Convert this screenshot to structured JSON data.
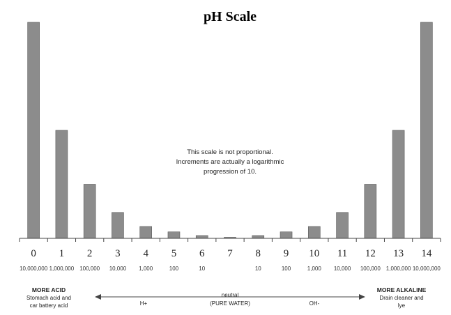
{
  "chart_data": {
    "type": "bar",
    "title": "pH Scale",
    "xlabel": "",
    "ylabel": "",
    "categories": [
      "0",
      "1",
      "2",
      "3",
      "4",
      "5",
      "6",
      "7",
      "8",
      "9",
      "10",
      "11",
      "12",
      "13",
      "14"
    ],
    "values": [
      10000000,
      5000000,
      2500000,
      1200000,
      550000,
      300000,
      130000,
      50000,
      130000,
      300000,
      550000,
      1200000,
      2500000,
      5000000,
      10000000
    ],
    "ylim": [
      0,
      10000000
    ],
    "grid": false,
    "bar_color": "#8c8c8c",
    "sub_labels": [
      "10,000,000",
      "1,000,000",
      "100,000",
      "10,000",
      "1,000",
      "100",
      "10",
      "",
      "10",
      "100",
      "1,000",
      "10,000",
      "100,000",
      "1,000,000",
      "10,000,000"
    ],
    "note_lines": [
      "This scale is not proportional.",
      "Increments are actually a logarithmic",
      "progression of 10."
    ],
    "annotations": {
      "left": [
        "MORE ACID",
        "Stomach acid and",
        "car battery acid"
      ],
      "right": [
        "MORE ALKALINE",
        "Drain cleaner and",
        "lye"
      ],
      "center": [
        "neutral",
        "(PURE WATER)"
      ],
      "acid_label": "H+",
      "base_label": "OH-"
    }
  }
}
